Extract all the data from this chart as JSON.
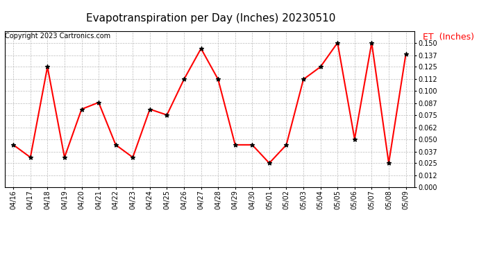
{
  "title": "Evapotranspiration per Day (Inches) 20230510",
  "copyright": "Copyright 2023 Cartronics.com",
  "legend_label": "ET  (Inches)",
  "x_labels": [
    "04/16",
    "04/17",
    "04/18",
    "04/19",
    "04/20",
    "04/21",
    "04/22",
    "04/23",
    "04/24",
    "04/25",
    "04/26",
    "04/27",
    "04/28",
    "04/29",
    "04/30",
    "05/01",
    "05/02",
    "05/03",
    "05/04",
    "05/05",
    "05/06",
    "05/07",
    "05/08",
    "05/09"
  ],
  "y_values": [
    0.044,
    0.031,
    0.125,
    0.031,
    0.081,
    0.088,
    0.044,
    0.031,
    0.081,
    0.075,
    0.112,
    0.144,
    0.112,
    0.044,
    0.044,
    0.025,
    0.044,
    0.112,
    0.125,
    0.15,
    0.05,
    0.15,
    0.025,
    0.138
  ],
  "line_color": "red",
  "marker_color": "black",
  "marker": "*",
  "ylim": [
    0.0,
    0.162
  ],
  "yticks": [
    0.0,
    0.012,
    0.025,
    0.037,
    0.05,
    0.062,
    0.075,
    0.087,
    0.1,
    0.112,
    0.125,
    0.137,
    0.15
  ],
  "title_fontsize": 11,
  "copyright_fontsize": 7,
  "legend_fontsize": 9,
  "legend_color": "red",
  "grid_color": "#bbbbbb",
  "background_color": "#ffffff",
  "tick_fontsize": 7,
  "linewidth": 1.5,
  "marker_size": 18
}
